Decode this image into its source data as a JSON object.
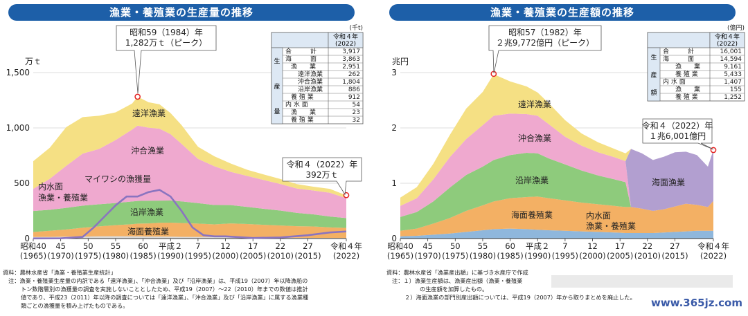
{
  "charts": [
    {
      "title": "漁業・養殖業の生産量の推移",
      "unit": "万ｔ",
      "table_unit": "(千t)",
      "table_header": [
        "令和４年",
        "(2022)"
      ],
      "table_side": [
        "生",
        "産",
        "量"
      ],
      "table_rows": [
        {
          "label": "合　　　計",
          "value": "3,917"
        },
        {
          "label": "海　　　面",
          "value": "3,863"
        },
        {
          "label": "漁　　業",
          "value": "2,951"
        },
        {
          "label": "遠洋漁業",
          "value": "262"
        },
        {
          "label": "沖合漁業",
          "value": "1,804"
        },
        {
          "label": "沿岸漁業",
          "value": "886"
        },
        {
          "label": "養 殖 業",
          "value": "912"
        },
        {
          "label": "内 水 面",
          "value": "54"
        },
        {
          "label": "漁　　業",
          "value": "23"
        },
        {
          "label": "養 殖 業",
          "value": "32"
        }
      ],
      "peak_label": [
        "昭和59（1984）年",
        "1,282万ｔ（ピーク）"
      ],
      "end_label": [
        "令和４（2022）年",
        "392万ｔ"
      ],
      "series_labels": [
        "遠洋漁業",
        "沖合漁業",
        "沿岸漁業",
        "海面養殖業",
        "マイワシの漁獲量",
        "内水面",
        "漁業・養殖業"
      ],
      "source": [
        "資料：農林水産省「漁業・養殖業生産統計」",
        "注：漁業・養殖業生産量の内訳である「遠洋漁業」、「沖合漁業」及び「沿岸漁業」は、平成19（2007）年以降漁船の",
        "トン数階層別の漁獲量の調査を実施しないこととしたため、平成19（2007）～22（2010）年までの数値は推計",
        "値であり、平成23（2011）年以降の調査については「遠洋漁業」、「沖合漁業」及び「沿岸漁業」に属する漁業種",
        "類ごとの漁獲量を積み上げたものである。"
      ]
    },
    {
      "title": "漁業・養殖業の生産額の推移",
      "unit": "兆円",
      "table_unit": "(億円)",
      "table_header": [
        "令和４年",
        "(2022)"
      ],
      "table_side": [
        "生",
        "産",
        "額"
      ],
      "table_rows": [
        {
          "label": "合　　　計",
          "value": "16,001"
        },
        {
          "label": "海　　　面",
          "value": "14,594"
        },
        {
          "label": "漁　　業",
          "value": "9,161"
        },
        {
          "label": "養 殖 業",
          "value": "5,433"
        },
        {
          "label": "内 水 面",
          "value": "1,407"
        },
        {
          "label": "漁　　業",
          "value": "155"
        },
        {
          "label": "養 殖 業",
          "value": "1,252"
        }
      ],
      "peak_label": [
        "昭和57（1982）年",
        "２兆9,772億円（ピーク）"
      ],
      "end_label": [
        "令和４（2022）年",
        "１兆6,001億円"
      ],
      "series_labels": [
        "遠洋漁業",
        "沖合漁業",
        "沿岸漁業",
        "海面漁業",
        "海面養殖業",
        "内水面",
        "漁業・養殖業"
      ],
      "source": [
        "資料：農林水産省「漁業産出額」に基づき水産庁で作成",
        "注：１）漁業生産額は、漁業産出額（漁業・養殖業",
        "の生産額を加算したもの。",
        "２）海面漁業の部門別産出額については、平成19（2007）年から取りまとめを廃止した。"
      ]
    }
  ],
  "chart_data": [
    {
      "type": "area",
      "x_ticks": [
        "昭和40\n(1965)",
        "45\n(1970)",
        "50\n(1975)",
        "55\n(1980)",
        "60\n(1985)",
        "平成２\n(1990)",
        "7\n(1995)",
        "12\n(2000)",
        "17\n(2005)",
        "22\n(2010)",
        "27\n(2015)",
        "令和４年\n(2022)"
      ],
      "tick_years": [
        1965,
        1970,
        1975,
        1980,
        1985,
        1990,
        1995,
        2000,
        2005,
        2010,
        2015,
        2022
      ],
      "ylabel": "万ｔ",
      "yticks": [
        0,
        500,
        1000,
        1500
      ],
      "ylim": [
        0,
        1500
      ],
      "x": [
        1965,
        1968,
        1971,
        1974,
        1977,
        1980,
        1983,
        1984,
        1986,
        1988,
        1990,
        1992,
        1995,
        1998,
        2001,
        2004,
        2007,
        2010,
        2013,
        2016,
        2019,
        2022
      ],
      "series": [
        {
          "name": "内水面",
          "color": "#d8d8d8",
          "values": [
            14,
            15,
            17,
            18,
            20,
            21,
            20,
            20,
            19,
            18,
            17,
            16,
            15,
            13,
            12,
            11,
            9,
            8,
            7,
            6,
            6,
            5
          ]
        },
        {
          "name": "海面養殖業",
          "color": "#f3b064",
          "values": [
            45,
            55,
            65,
            80,
            90,
            100,
            110,
            115,
            118,
            125,
            127,
            125,
            120,
            115,
            125,
            120,
            115,
            110,
            105,
            103,
            95,
            91
          ]
        },
        {
          "name": "沿岸漁業",
          "color": "#8ecb7c",
          "values": [
            190,
            190,
            195,
            200,
            200,
            200,
            205,
            205,
            205,
            200,
            200,
            195,
            185,
            175,
            165,
            155,
            145,
            135,
            120,
            110,
            98,
            89
          ]
        },
        {
          "name": "沖合漁業",
          "color": "#efa9cf",
          "values": [
            200,
            280,
            380,
            470,
            500,
            570,
            650,
            680,
            660,
            650,
            600,
            520,
            400,
            350,
            300,
            280,
            260,
            240,
            220,
            215,
            215,
            180
          ]
        },
        {
          "name": "遠洋漁業",
          "color": "#f5e084",
          "values": [
            250,
            280,
            350,
            330,
            300,
            250,
            235,
            262,
            230,
            220,
            190,
            170,
            110,
            90,
            75,
            55,
            50,
            45,
            40,
            35,
            35,
            26
          ]
        }
      ],
      "line_series": {
        "name": "マイワシの漁獲量",
        "color": "#8a74c0",
        "x": [
          1965,
          1970,
          1974,
          1976,
          1978,
          1980,
          1982,
          1984,
          1986,
          1988,
          1990,
          1992,
          1994,
          1996,
          1998,
          2000,
          2005,
          2010,
          2015,
          2019,
          2022
        ],
        "values": [
          1,
          2,
          15,
          100,
          200,
          300,
          380,
          380,
          420,
          440,
          380,
          250,
          100,
          30,
          20,
          20,
          5,
          10,
          30,
          55,
          64
        ]
      },
      "peak": {
        "x": 1984,
        "y": 1282
      },
      "end": {
        "x": 2022,
        "y": 392
      }
    },
    {
      "type": "area",
      "x_ticks": [
        "昭和40\n(1965)",
        "45\n(1970)",
        "50\n(1975)",
        "55\n(1980)",
        "60\n(1985)",
        "平成２\n(1990)",
        "7\n(1995)",
        "12\n(2000)",
        "17\n(2005)",
        "22\n(2010)",
        "27\n(2015)",
        "令和４年\n(2022)"
      ],
      "tick_years": [
        1965,
        1970,
        1975,
        1980,
        1985,
        1990,
        1995,
        2000,
        2005,
        2010,
        2015,
        2022
      ],
      "ylabel": "兆円",
      "yticks": [
        0,
        1,
        2,
        3
      ],
      "ylim": [
        0,
        3
      ],
      "x": [
        1965,
        1968,
        1971,
        1974,
        1977,
        1980,
        1982,
        1985,
        1988,
        1990,
        1992,
        1995,
        1998,
        2001,
        2004,
        2006,
        2007,
        2009,
        2011,
        2013,
        2015,
        2017,
        2019,
        2021,
        2022
      ],
      "series": [
        {
          "name": "内水面",
          "color": "#8fb7dc",
          "values": [
            0.04,
            0.05,
            0.07,
            0.09,
            0.12,
            0.15,
            0.17,
            0.18,
            0.17,
            0.16,
            0.15,
            0.14,
            0.13,
            0.12,
            0.11,
            0.1,
            0.1,
            0.1,
            0.1,
            0.11,
            0.12,
            0.13,
            0.14,
            0.14,
            0.14
          ]
        },
        {
          "name": "海面養殖業",
          "color": "#f3b064",
          "values": [
            0.1,
            0.13,
            0.2,
            0.28,
            0.38,
            0.45,
            0.5,
            0.55,
            0.58,
            0.6,
            0.58,
            0.55,
            0.52,
            0.5,
            0.48,
            0.47,
            0.47,
            0.44,
            0.4,
            0.42,
            0.46,
            0.5,
            0.47,
            0.43,
            0.54
          ]
        },
        {
          "name": "沿岸漁業",
          "color": "#8ecb7c",
          "values": [
            0.25,
            0.3,
            0.4,
            0.55,
            0.65,
            0.7,
            0.75,
            0.78,
            0.8,
            0.78,
            0.72,
            0.65,
            0.58,
            0.52,
            0.48,
            0.45,
            0,
            0,
            0,
            0,
            0,
            0,
            0,
            0,
            0
          ]
        },
        {
          "name": "沖合漁業",
          "color": "#efa9cf",
          "values": [
            0.2,
            0.25,
            0.4,
            0.55,
            0.65,
            0.75,
            0.8,
            0.75,
            0.7,
            0.68,
            0.62,
            0.5,
            0.45,
            0.42,
            0.4,
            0.38,
            0,
            0,
            0,
            0,
            0,
            0,
            0,
            0,
            0
          ]
        },
        {
          "name": "海面漁業",
          "color": "#b29fd0",
          "values": [
            0,
            0,
            0,
            0,
            0,
            0,
            0,
            0,
            0,
            0,
            0,
            0,
            0,
            0,
            0,
            0,
            1.05,
            1.0,
            0.92,
            0.95,
            0.98,
            0.94,
            0.9,
            0.73,
            0.92
          ]
        },
        {
          "name": "遠洋漁業",
          "color": "#f5e084",
          "values": [
            0.15,
            0.2,
            0.28,
            0.4,
            0.55,
            0.6,
            0.75,
            0.58,
            0.5,
            0.42,
            0.38,
            0.3,
            0.22,
            0.18,
            0.15,
            0.14,
            0,
            0,
            0,
            0,
            0,
            0,
            0,
            0,
            0
          ]
        }
      ],
      "peak": {
        "x": 1982,
        "y": 2.9772
      },
      "end": {
        "x": 2022,
        "y": 1.6001
      }
    }
  ]
}
